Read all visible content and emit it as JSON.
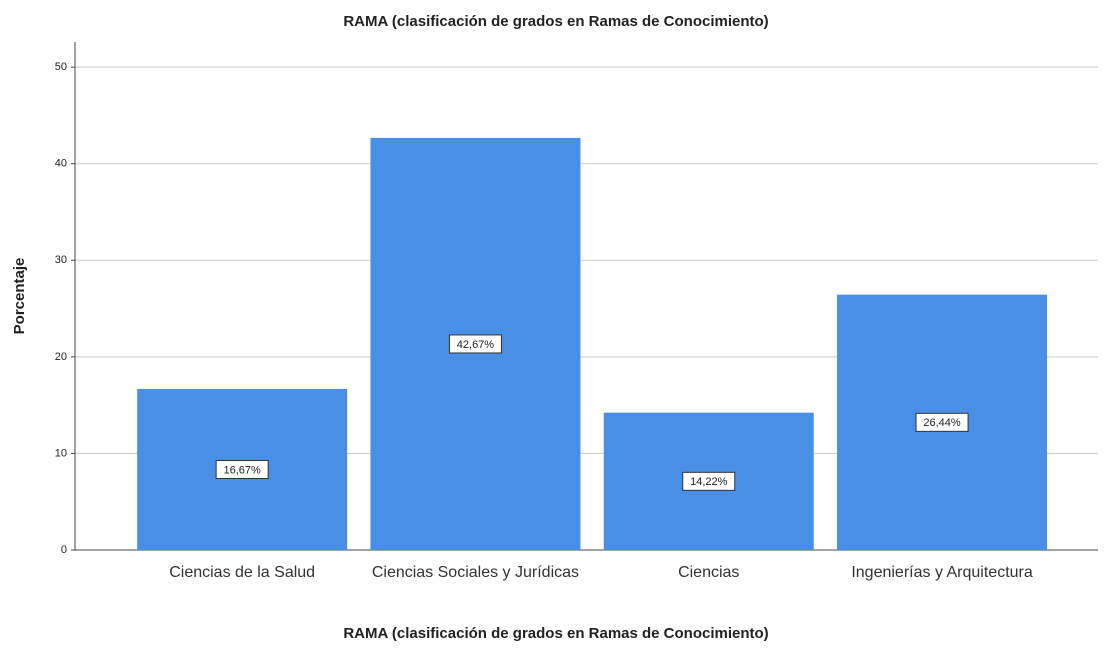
{
  "chart_data": {
    "type": "bar",
    "title": "RAMA (clasificación de grados en Ramas de Conocimiento)",
    "x_label": "RAMA (clasificación de grados en Ramas de Conocimiento)",
    "y_label": "Porcentaje",
    "categories": [
      "Ciencias de la Salud",
      "Ciencias Sociales y Jurídicas",
      "Ciencias",
      "Ingenierías y Arquitectura"
    ],
    "values": [
      16.67,
      42.67,
      14.22,
      26.44
    ],
    "value_labels": [
      "16,67%",
      "42,67%",
      "14,22%",
      "26,44%"
    ],
    "color": "#4a8fe6",
    "ylim": [
      0,
      52.6
    ],
    "yticks": [
      0,
      10,
      20,
      30,
      40,
      50
    ],
    "grid": true
  }
}
